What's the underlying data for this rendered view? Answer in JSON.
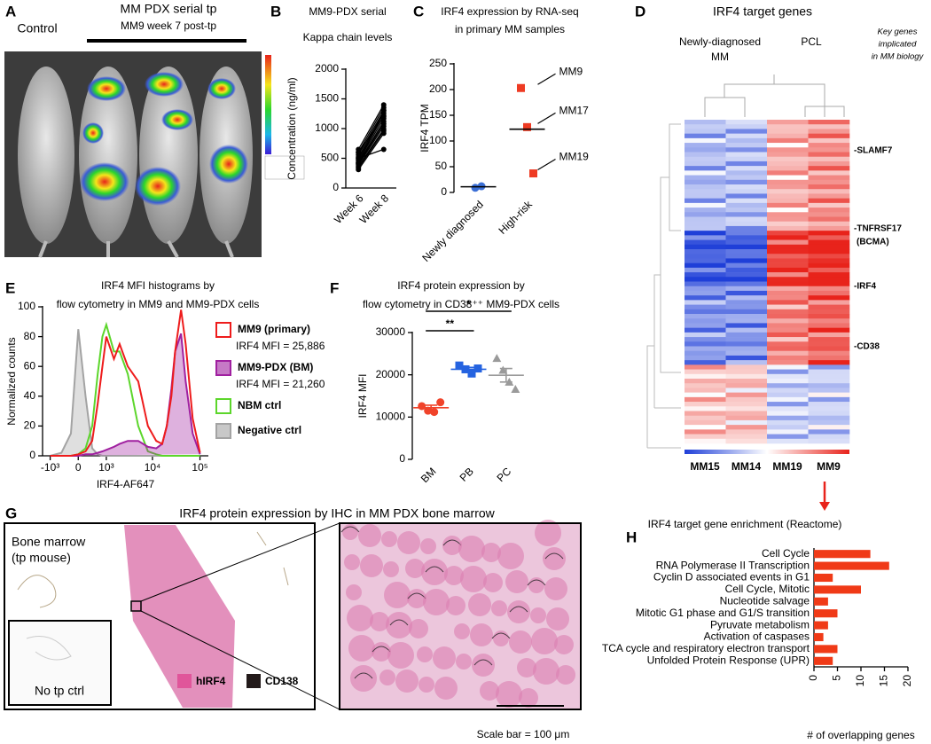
{
  "panel_labels": [
    "A",
    "B",
    "C",
    "D",
    "E",
    "F",
    "G",
    "H"
  ],
  "panel_a": {
    "control": "Control",
    "title": "MM PDX serial tp",
    "subtitle": "MM9 week 7 post-tp"
  },
  "chart_data": [
    {
      "type": "line",
      "title": "MM9-PDX serial",
      "subtitle": "Kappa chain levels",
      "ylabel": "Concentration (ng/ml)",
      "categories": [
        "Week 6",
        "Week 8"
      ],
      "color": "#000000",
      "ylim": [
        0,
        2000
      ],
      "yticks": [
        0,
        500,
        1000,
        1500,
        2000
      ],
      "series": [
        {
          "values": [
            650,
            1400
          ]
        },
        {
          "values": [
            600,
            1350
          ]
        },
        {
          "values": [
            560,
            1300
          ]
        },
        {
          "values": [
            520,
            1260
          ]
        },
        {
          "values": [
            490,
            1220
          ]
        },
        {
          "values": [
            460,
            1170
          ]
        },
        {
          "values": [
            430,
            1120
          ]
        },
        {
          "values": [
            410,
            1080
          ]
        },
        {
          "values": [
            390,
            1040
          ]
        },
        {
          "values": [
            360,
            990
          ]
        },
        {
          "values": [
            340,
            960
          ]
        },
        {
          "values": [
            310,
            920
          ]
        },
        {
          "values": [
            500,
            650
          ]
        },
        {
          "values": [
            600,
            1200
          ]
        },
        {
          "values": [
            420,
            1310
          ]
        }
      ]
    },
    {
      "type": "dot",
      "title": "IRF4 expression by RNA-seq",
      "subtitle": "in primary MM samples",
      "ylabel": "IRF4 TPM",
      "ylim": [
        0,
        250
      ],
      "yticks": [
        0,
        50,
        100,
        150,
        200,
        250
      ],
      "groups": [
        {
          "category": "Newly diagnosed",
          "color": "#3b6fd6",
          "marker": "circle",
          "values": [
            9,
            12
          ],
          "mean": 11
        },
        {
          "category": "High-risk",
          "color": "#ee3b23",
          "marker": "square",
          "values": [
            203,
            127,
            37
          ],
          "point_labels": [
            "MM9",
            "MM17",
            "MM19"
          ],
          "mean": 123
        }
      ]
    },
    {
      "type": "line",
      "title": "IRF4 MFI histograms by",
      "subtitle": "flow cytometry in MM9 and MM9-PDX cells",
      "ylabel": "Normalized counts",
      "xlabel": "IRF4-AF647",
      "xscale": "biexponential",
      "xlim": [
        -1500,
        150000
      ],
      "xticks": [
        {
          "value": -1000,
          "label": "-10³"
        },
        0,
        {
          "value": 1000,
          "label": "10³"
        },
        {
          "value": 10000,
          "label": "10⁴"
        },
        {
          "value": 100000,
          "label": "10⁵"
        }
      ],
      "ylim": [
        0,
        100
      ],
      "yticks": [
        0,
        20,
        40,
        60,
        80,
        100
      ],
      "x": [
        -1000,
        -500,
        -200,
        0,
        200,
        400,
        600,
        800,
        1000,
        1500,
        2000,
        3000,
        5000,
        8000,
        12000,
        16000,
        20000,
        25000,
        30000,
        40000,
        50000,
        70000,
        100000
      ],
      "series": [
        {
          "name": "MM9 (primary)",
          "note": "IRF4 MFI = 25,886",
          "color": "#ee1c1c",
          "fill": false,
          "values": [
            0,
            0,
            0,
            1,
            3,
            10,
            35,
            60,
            80,
            65,
            75,
            60,
            50,
            20,
            10,
            8,
            20,
            40,
            70,
            98,
            75,
            25,
            2
          ]
        },
        {
          "name": "MM9-PDX (BM)",
          "note": "IRF4 MFI = 21,260",
          "color": "#a020a0",
          "fill": true,
          "values": [
            0,
            0,
            0,
            0,
            1,
            1,
            2,
            3,
            4,
            6,
            8,
            10,
            10,
            6,
            5,
            8,
            20,
            45,
            70,
            82,
            50,
            15,
            1
          ]
        },
        {
          "name": "NBM ctrl",
          "color": "#5cd62b",
          "fill": false,
          "values": [
            0,
            0,
            0,
            1,
            5,
            20,
            55,
            80,
            88,
            70,
            70,
            55,
            20,
            3,
            1,
            0,
            0,
            0,
            0,
            0,
            0,
            0,
            0
          ]
        },
        {
          "name": "Negative ctrl",
          "color": "#a3a3a3",
          "fill": true,
          "values": [
            0,
            2,
            15,
            85,
            40,
            5,
            1,
            0,
            0,
            0,
            0,
            0,
            0,
            0,
            0,
            0,
            0,
            0,
            0,
            0,
            0,
            0,
            0
          ]
        }
      ]
    },
    {
      "type": "dot",
      "title": "IRF4 protein expression by",
      "subtitle": "flow cytometry in CD38⁺⁺ MM9-PDX cells",
      "ylabel": "IRF4 MFI",
      "ylim": [
        0,
        30000
      ],
      "yticks": [
        0,
        10000,
        20000,
        30000
      ],
      "groups": [
        {
          "category": "BM",
          "color": "#f0432a",
          "marker": "circle",
          "values": [
            12600,
            11500,
            11200,
            13500
          ],
          "mean": 12200,
          "sem": 600
        },
        {
          "category": "PB",
          "color": "#2563e0",
          "marker": "square",
          "values": [
            22200,
            21300,
            20300,
            21500
          ],
          "mean": 21300,
          "sem": 450
        },
        {
          "category": "PC",
          "color": "#9a9a9a",
          "marker": "triangle",
          "values": [
            23800,
            21000,
            18200,
            16500
          ],
          "mean": 19900,
          "sem": 1600
        }
      ],
      "significance": [
        {
          "label": "**",
          "pair": [
            "BM",
            "PB"
          ]
        },
        {
          "label": "*",
          "pair": [
            "BM",
            "PC"
          ]
        }
      ]
    },
    {
      "type": "bar",
      "orientation": "horizontal",
      "title": "IRF4 target gene enrichment (Reactome)",
      "xlabel": "# of overlapping genes",
      "color": "#f03a17",
      "xlim": [
        0,
        20
      ],
      "xticks": [
        0,
        5,
        10,
        15,
        20
      ],
      "categories": [
        "Cell Cycle",
        "RNA Polymerase II Transcription",
        "Cyclin D associated events in G1",
        "Cell Cycle, Mitotic",
        "Nucleotide salvage",
        "Mitotic G1 phase and G1/S transition",
        "Pyruvate metabolism",
        "Activation of caspases",
        "TCA cycle and respiratory electron transport",
        "Unfolded Protein Response (UPR)"
      ],
      "values": [
        12,
        16,
        4,
        10,
        3,
        5,
        3,
        2,
        5,
        4
      ]
    }
  ],
  "panel_d": {
    "title": "IRF4 target genes",
    "group_labels": [
      [
        "Newly-diagnosed",
        "MM"
      ],
      [
        "PCL"
      ]
    ],
    "note": [
      "Key genes",
      "implicated",
      "in MM biology"
    ],
    "genes": [
      "-SLAMF7",
      "-TNFRSF17",
      "(BCMA)",
      "-IRF4",
      "-CD38"
    ],
    "samples": [
      {
        "name": "MM15",
        "color": "#000000"
      },
      {
        "name": "MM14",
        "color": "#000000"
      },
      {
        "name": "MM19",
        "color": "#000000"
      },
      {
        "name": "MM9",
        "color": "#e8231b"
      }
    ]
  },
  "panel_g": {
    "title": "IRF4 protein expression by IHC in MM PDX bone marrow",
    "tissue_label": [
      "Bone marrow",
      "(tp mouse)"
    ],
    "control_label": "No tp ctrl",
    "legend": [
      {
        "name": "hIRF4",
        "color": "#e0559a"
      },
      {
        "name": "CD138",
        "color": "#231a1a"
      }
    ],
    "scale_note": "Scale bar = 100 μm"
  }
}
